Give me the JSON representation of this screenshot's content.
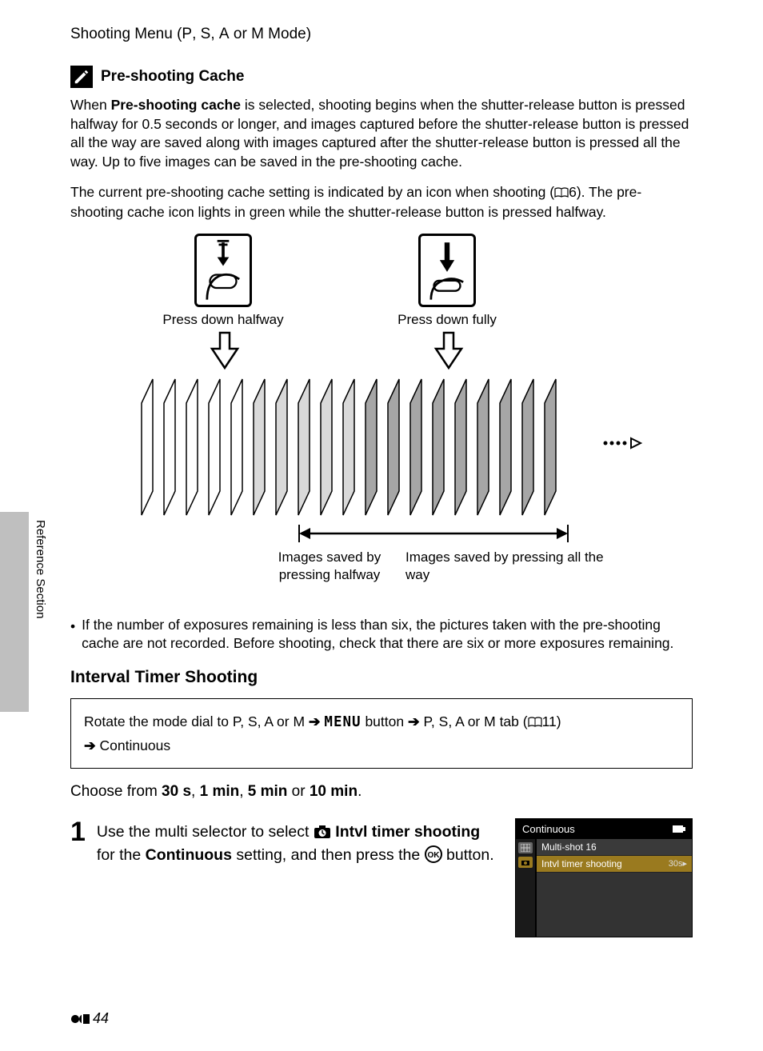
{
  "header": {
    "title_prefix": "Shooting Menu (",
    "modes": [
      "P",
      "S",
      "A",
      "M"
    ],
    "title_suffix": " Mode)"
  },
  "note": {
    "title": "Pre-shooting Cache"
  },
  "para1_a": "When ",
  "para1_bold": "Pre-shooting cache",
  "para1_b": " is selected, shooting begins when the shutter-release button is pressed halfway for 0.5 seconds or longer, and images captured before the shutter-release button is pressed all the way are saved along with images captured after the shutter-release button is pressed all the way. Up to five images can be saved in the pre-shooting cache.",
  "para2_a": "The current pre-shooting cache setting is indicated by an icon when shooting (",
  "para2_ref": "6",
  "para2_b": "). The pre-shooting cache icon lights in green while the shutter-release button is pressed halfway.",
  "diagram": {
    "halfway_label": "Press down halfway",
    "fully_label": "Press down fully",
    "range_left": "Images saved by pressing halfway",
    "range_right": "Images saved by pressing all the way",
    "frame_colors": {
      "blank": "#ffffff",
      "light": "#d9d9d9",
      "dark": "#a6a6a6"
    },
    "frame_sequence": [
      "blank",
      "blank",
      "blank",
      "blank",
      "blank",
      "light",
      "light",
      "light",
      "light",
      "light",
      "dark",
      "dark",
      "dark",
      "dark",
      "dark",
      "dark",
      "dark",
      "dark",
      "dark"
    ],
    "frame_count": 19
  },
  "sidebar_label": "Reference Section",
  "bullet1": "If the number of exposures remaining is less than six, the pictures taken with the pre-shooting cache are not recorded. Before shooting, check that there are six or more exposures remaining.",
  "interval_heading": "Interval Timer Shooting",
  "nav": {
    "pre": "Rotate the mode dial to ",
    "menu_word": "MENU",
    "button_word": " button ",
    "tab_word": " tab (",
    "tab_ref": "11",
    "tab_close": ")",
    "continuous": "Continuous"
  },
  "choose_a": "Choose from ",
  "choose_opts": [
    "30 s",
    "1 min",
    "5 min",
    "10 min"
  ],
  "step": {
    "num": "1",
    "a": "Use the multi selector to select ",
    "b_bold": "Intvl timer shooting",
    "c": " for the ",
    "d_bold": "Continuous",
    "e": " setting, and then press the ",
    "f": " button."
  },
  "lcd": {
    "title": "Continuous",
    "items": [
      {
        "label": "Multi-shot 16",
        "right": ""
      },
      {
        "label": "Intvl timer shooting",
        "right": "30s",
        "selected": true
      }
    ]
  },
  "page_number": "44"
}
